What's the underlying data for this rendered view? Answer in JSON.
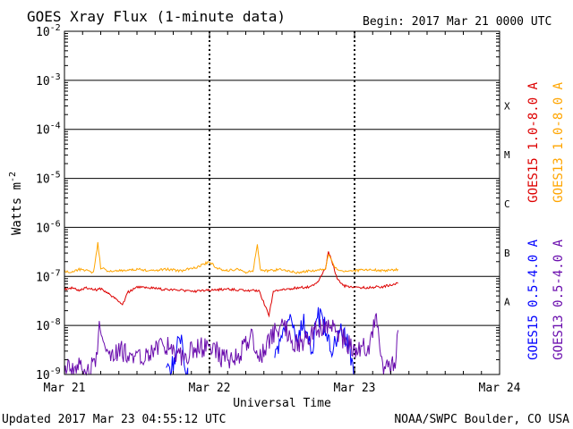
{
  "chart_data": {
    "type": "line",
    "title": "GOES Xray Flux (1-minute data)",
    "begin_label": "Begin:  2017 Mar 21 0000 UTC",
    "ylabel": "Watts m",
    "ylabel_sup": "-2",
    "xlabel": "Universal Time",
    "y_scale": "log",
    "ylim": [
      1e-09,
      0.01
    ],
    "y_ticks": [
      {
        "base": "10",
        "exp": "-9",
        "value": 1e-09
      },
      {
        "base": "10",
        "exp": "-8",
        "value": 1e-08
      },
      {
        "base": "10",
        "exp": "-7",
        "value": 1e-07
      },
      {
        "base": "10",
        "exp": "-6",
        "value": 1e-06
      },
      {
        "base": "10",
        "exp": "-5",
        "value": 1e-05
      },
      {
        "base": "10",
        "exp": "-4",
        "value": 0.0001
      },
      {
        "base": "10",
        "exp": "-3",
        "value": 0.001
      },
      {
        "base": "10",
        "exp": "-2",
        "value": 0.01
      }
    ],
    "xlim_days": [
      0,
      3
    ],
    "x_ticks": [
      {
        "label": "Mar 21",
        "day": 0
      },
      {
        "label": "Mar 22",
        "day": 1
      },
      {
        "label": "Mar 23",
        "day": 2
      },
      {
        "label": "Mar 24",
        "day": 3
      }
    ],
    "grid": true,
    "flare_classes": [
      {
        "label": "A",
        "value": 1e-08
      },
      {
        "label": "B",
        "value": 1e-07
      },
      {
        "label": "C",
        "value": 1e-06
      },
      {
        "label": "M",
        "value": 1e-05
      },
      {
        "label": "X",
        "value": 0.0001
      }
    ],
    "series": [
      {
        "name": "GOES15 1.0-8.0 A",
        "color": "#dd0000",
        "values": [
          [
            0.0,
            5.5e-08
          ],
          [
            0.05,
            5.8e-08
          ],
          [
            0.1,
            5.2e-08
          ],
          [
            0.15,
            6e-08
          ],
          [
            0.2,
            5.3e-08
          ],
          [
            0.25,
            5.6e-08
          ],
          [
            0.3,
            4.6e-08
          ],
          [
            0.4,
            2.7e-08
          ],
          [
            0.44,
            4.8e-08
          ],
          [
            0.5,
            6e-08
          ],
          [
            0.6,
            5.8e-08
          ],
          [
            0.7,
            5.4e-08
          ],
          [
            0.8,
            5.2e-08
          ],
          [
            0.9,
            5e-08
          ],
          [
            1.0,
            5.2e-08
          ],
          [
            1.1,
            5.5e-08
          ],
          [
            1.2,
            5.3e-08
          ],
          [
            1.28,
            5e-08
          ],
          [
            1.34,
            5.2e-08
          ],
          [
            1.41,
            1.6e-08
          ],
          [
            1.44,
            4.8e-08
          ],
          [
            1.5,
            5.5e-08
          ],
          [
            1.6,
            5.8e-08
          ],
          [
            1.7,
            6.2e-08
          ],
          [
            1.75,
            8e-08
          ],
          [
            1.8,
            1.5e-07
          ],
          [
            1.82,
            3.2e-07
          ],
          [
            1.85,
            1.8e-07
          ],
          [
            1.88,
            9e-08
          ],
          [
            1.92,
            6.5e-08
          ],
          [
            2.0,
            5.8e-08
          ],
          [
            2.1,
            6e-08
          ],
          [
            2.2,
            6.2e-08
          ],
          [
            2.3,
            7.2e-08
          ]
        ]
      },
      {
        "name": "GOES13 1.0-8.0 A",
        "color": "#ffa500",
        "values": [
          [
            0.0,
            1.3e-07
          ],
          [
            0.05,
            1.2e-07
          ],
          [
            0.1,
            1.4e-07
          ],
          [
            0.15,
            1.3e-07
          ],
          [
            0.2,
            1.2e-07
          ],
          [
            0.23,
            4.8e-07
          ],
          [
            0.25,
            1.5e-07
          ],
          [
            0.3,
            1.3e-07
          ],
          [
            0.4,
            1.3e-07
          ],
          [
            0.5,
            1.4e-07
          ],
          [
            0.6,
            1.3e-07
          ],
          [
            0.7,
            1.4e-07
          ],
          [
            0.8,
            1.3e-07
          ],
          [
            0.9,
            1.5e-07
          ],
          [
            1.0,
            2e-07
          ],
          [
            1.05,
            1.5e-07
          ],
          [
            1.1,
            1.3e-07
          ],
          [
            1.2,
            1.4e-07
          ],
          [
            1.25,
            1.2e-07
          ],
          [
            1.3,
            1.3e-07
          ],
          [
            1.33,
            4.3e-07
          ],
          [
            1.35,
            1.4e-07
          ],
          [
            1.4,
            1.3e-07
          ],
          [
            1.5,
            1.4e-07
          ],
          [
            1.6,
            1.2e-07
          ],
          [
            1.7,
            1.3e-07
          ],
          [
            1.8,
            1.4e-07
          ],
          [
            1.82,
            2.8e-07
          ],
          [
            1.86,
            1.6e-07
          ],
          [
            1.9,
            1.3e-07
          ],
          [
            2.0,
            1.3e-07
          ],
          [
            2.1,
            1.4e-07
          ],
          [
            2.2,
            1.3e-07
          ],
          [
            2.3,
            1.4e-07
          ]
        ]
      },
      {
        "name": "GOES15 0.5-4.0 A",
        "color": "#0000ff",
        "values": [
          [
            0.7,
            1e-09
          ],
          [
            0.75,
            1.5e-09
          ],
          [
            0.78,
            5e-09
          ],
          [
            0.8,
            6e-09
          ],
          [
            0.82,
            2e-09
          ],
          [
            0.85,
            1e-09
          ],
          [
            1.45,
            2e-09
          ],
          [
            1.5,
            7e-09
          ],
          [
            1.55,
            1.5e-08
          ],
          [
            1.6,
            5e-09
          ],
          [
            1.65,
            1.2e-08
          ],
          [
            1.7,
            3e-09
          ],
          [
            1.75,
            1.5e-08
          ],
          [
            1.8,
            9e-09
          ],
          [
            1.85,
            2.5e-09
          ],
          [
            1.9,
            1.2e-08
          ],
          [
            1.95,
            5e-09
          ],
          [
            2.0,
            1e-09
          ]
        ]
      },
      {
        "name": "GOES13 0.5-4.0 A",
        "color": "#6a0dad",
        "values": [
          [
            0.0,
            1.2e-09
          ],
          [
            0.1,
            1.5e-09
          ],
          [
            0.15,
            1e-09
          ],
          [
            0.22,
            2e-09
          ],
          [
            0.24,
            1.2e-08
          ],
          [
            0.26,
            4e-09
          ],
          [
            0.3,
            2e-09
          ],
          [
            0.4,
            3e-09
          ],
          [
            0.5,
            2e-09
          ],
          [
            0.6,
            3e-09
          ],
          [
            0.7,
            4e-09
          ],
          [
            0.8,
            2.5e-09
          ],
          [
            0.9,
            3e-09
          ],
          [
            1.0,
            4e-09
          ],
          [
            1.1,
            2e-09
          ],
          [
            1.2,
            2.5e-09
          ],
          [
            1.3,
            6e-09
          ],
          [
            1.35,
            2e-09
          ],
          [
            1.4,
            5e-09
          ],
          [
            1.5,
            1.2e-08
          ],
          [
            1.6,
            4e-09
          ],
          [
            1.7,
            6e-09
          ],
          [
            1.8,
            1.2e-08
          ],
          [
            1.9,
            6e-09
          ],
          [
            2.0,
            3e-09
          ],
          [
            2.1,
            4e-09
          ],
          [
            2.15,
            1.2e-08
          ],
          [
            2.2,
            1e-09
          ],
          [
            2.28,
            2e-09
          ],
          [
            2.3,
            8e-09
          ]
        ]
      }
    ]
  },
  "footer": {
    "updated": "Updated 2017 Mar 23 04:55:12 UTC",
    "credit": "NOAA/SWPC Boulder, CO USA"
  }
}
